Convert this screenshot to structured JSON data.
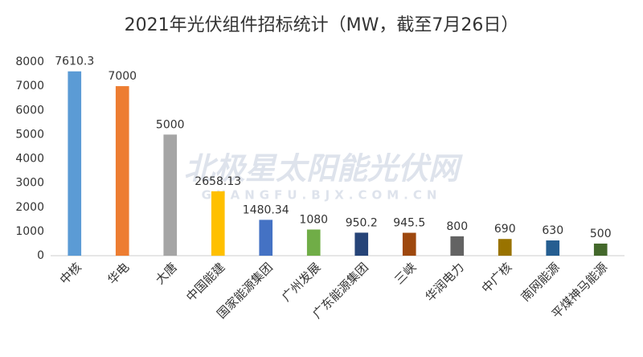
{
  "chart_data": {
    "type": "bar",
    "title": "2021年光伏组件招标统计（MW，截至7月26日）",
    "categories": [
      "中核",
      "华电",
      "大唐",
      "中国能建",
      "国家能源集团",
      "广州发展",
      "广东能源集团",
      "三峡",
      "华润电力",
      "中广核",
      "南网能源",
      "平煤神马能源"
    ],
    "values": [
      7610.3,
      7000,
      5000,
      2658.13,
      1480.34,
      1080,
      950.2,
      945.5,
      800,
      690,
      630,
      500
    ],
    "colors": [
      "#5b9bd5",
      "#ed7d31",
      "#a5a5a5",
      "#ffc000",
      "#4472c4",
      "#70ad47",
      "#264478",
      "#9e480e",
      "#636363",
      "#997300",
      "#255e91",
      "#43682b"
    ],
    "ylim": [
      0,
      8000
    ],
    "yticks": [
      0,
      1000,
      2000,
      3000,
      4000,
      5000,
      6000,
      7000,
      8000
    ],
    "grid": false,
    "watermark": [
      "北极星太阳能光伏网",
      "GUANGFU.BJX.COM.CN"
    ]
  }
}
